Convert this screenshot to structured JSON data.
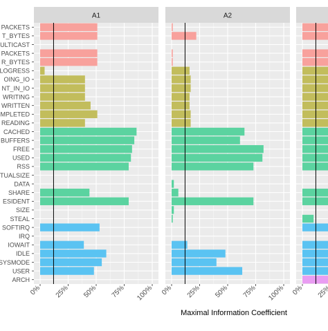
{
  "chart_data": {
    "type": "bar",
    "orientation": "horizontal",
    "xlabel": "Maximal Information Coefficient",
    "xlim": [
      0,
      100
    ],
    "x_ticks": [
      "0%",
      "25%",
      "50%",
      "75%",
      "100%"
    ],
    "reference_line": 12,
    "grid": true,
    "categories": [
      "PACKETS",
      "T_BYTES",
      "ULTICAST",
      "PACKETS",
      "R_BYTES",
      "LOGRESS",
      "OING_IO",
      "NT_IN_IO",
      "WRITING",
      "WRITTEN",
      "MPLETED",
      "READING",
      "CACHED",
      "BUFFERS",
      "FREE",
      "USED",
      "RSS",
      "TUALSIZE",
      "DATA",
      "SHARE",
      "ESIDENT",
      "SIZE",
      "STEAL",
      "SOFTIRQ",
      "IRQ",
      "IOWAIT",
      "IDLE",
      "SYSMODE",
      "USER",
      "ARCH"
    ],
    "category_colors": [
      "#f8a19c",
      "#f8a19c",
      "#f8a19c",
      "#f8a19c",
      "#f8a19c",
      "#c2bd5c",
      "#c2bd5c",
      "#c2bd5c",
      "#c2bd5c",
      "#c2bd5c",
      "#c2bd5c",
      "#c2bd5c",
      "#5bd3a0",
      "#5bd3a0",
      "#5bd3a0",
      "#5bd3a0",
      "#5bd3a0",
      "#5bd3a0",
      "#5bd3a0",
      "#5bd3a0",
      "#5bd3a0",
      "#5bd3a0",
      "#5bd3a0",
      "#5ac3f2",
      "#5ac3f2",
      "#5ac3f2",
      "#5ac3f2",
      "#5ac3f2",
      "#5ac3f2",
      "#e99df2"
    ],
    "panels": [
      {
        "name": "A1",
        "values": [
          51,
          51,
          0,
          51,
          51,
          4,
          40,
          40,
          40,
          45,
          51,
          40,
          86,
          84,
          82,
          81,
          79,
          0,
          0,
          44,
          79,
          0,
          0,
          53,
          0,
          39,
          59,
          55,
          48,
          0
        ]
      },
      {
        "name": "A2",
        "values": [
          1,
          22,
          0,
          1,
          1,
          16,
          17,
          17,
          16,
          16,
          17,
          17,
          65,
          61,
          82,
          81,
          73,
          0,
          2,
          6,
          73,
          2,
          1,
          0,
          0,
          14,
          48,
          40,
          63,
          0
        ]
      },
      {
        "name": "",
        "values": [
          40,
          40,
          0,
          40,
          40,
          40,
          40,
          40,
          40,
          40,
          40,
          40,
          40,
          40,
          40,
          40,
          40,
          0,
          0,
          40,
          40,
          0,
          10,
          40,
          0,
          40,
          40,
          40,
          40,
          40
        ]
      }
    ]
  }
}
